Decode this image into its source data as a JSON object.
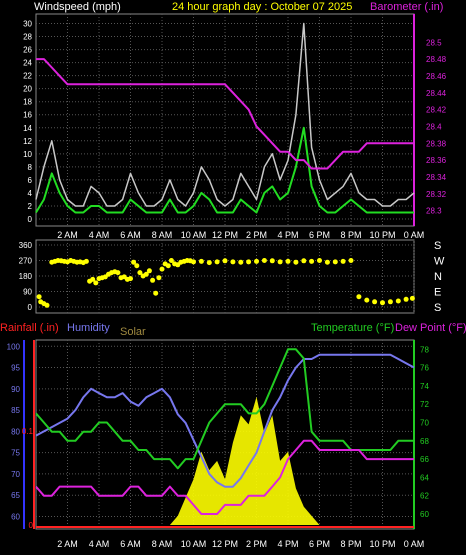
{
  "header": {
    "windspeed_label": "Windspeed (mph)",
    "title": "24 hour graph day : October 07 2025",
    "barometer_label": "Barometer (.in)"
  },
  "legend2": {
    "rainfall_label": "Rainfall (.in)",
    "humidity_label": "Humidity",
    "solar_label": "Solar",
    "temperature_label": "Temperature (°F)",
    "dewpoint_label": "Dew Point (°F)"
  },
  "time_ticks": [
    "2 AM",
    "4 AM",
    "6 AM",
    "8 AM",
    "10 AM",
    "12 PM",
    "2 PM",
    "4 PM",
    "6 PM",
    "8 PM",
    "10 PM",
    "0 AM"
  ],
  "colors": {
    "wind_gust": "#c8c8c8",
    "wind_avg": "#22dd22",
    "barometer": "#dd22dd",
    "direction": "#ffff00",
    "humidity": "#7777ee",
    "temperature": "#22cc22",
    "dewpoint": "#dd22dd",
    "solar": "#ffff00",
    "rainfall_axis": "#ff2222",
    "grid": "#555555"
  },
  "chart_data": [
    {
      "type": "line",
      "name": "wind-barometer",
      "x_hours": [
        0,
        0.5,
        1,
        1.5,
        2,
        2.5,
        3,
        3.5,
        4,
        4.5,
        5,
        5.5,
        6,
        6.5,
        7,
        7.5,
        8,
        8.5,
        9,
        9.5,
        10,
        10.5,
        11,
        11.5,
        12,
        12.5,
        13,
        13.5,
        14,
        14.5,
        15,
        15.5,
        16,
        16.5,
        17,
        17.5,
        18,
        18.5,
        19,
        19.5,
        20,
        20.5,
        21,
        21.5,
        22,
        22.5,
        23,
        23.5,
        24
      ],
      "series": [
        {
          "values": [
            3,
            8,
            12,
            6,
            3,
            2,
            2,
            5,
            4,
            2,
            2,
            3,
            7,
            4,
            2,
            2,
            3,
            6,
            3,
            2,
            4,
            8,
            6,
            3,
            2,
            3,
            7,
            5,
            3,
            8,
            10,
            6,
            9,
            16,
            30,
            11,
            6,
            3,
            4,
            5,
            7,
            4,
            3,
            3,
            2,
            2,
            3,
            3,
            4
          ]
        },
        {
          "values": [
            1,
            3,
            7,
            4,
            2,
            1,
            1,
            2,
            2,
            1,
            1,
            1,
            3,
            2,
            1,
            1,
            1,
            3,
            1,
            1,
            2,
            4,
            3,
            1,
            1,
            1,
            3,
            2,
            1,
            4,
            5,
            3,
            4,
            8,
            14,
            5,
            2,
            1,
            1,
            2,
            3,
            2,
            1,
            1,
            1,
            1,
            1,
            1,
            1
          ]
        },
        {
          "values": [
            28.48,
            28.48,
            28.47,
            28.46,
            28.45,
            28.45,
            28.45,
            28.45,
            28.45,
            28.45,
            28.45,
            28.45,
            28.45,
            28.45,
            28.45,
            28.45,
            28.45,
            28.45,
            28.45,
            28.45,
            28.45,
            28.45,
            28.45,
            28.45,
            28.45,
            28.44,
            28.43,
            28.42,
            28.4,
            28.39,
            28.38,
            28.37,
            28.37,
            28.36,
            28.36,
            28.35,
            28.35,
            28.35,
            28.36,
            28.37,
            28.37,
            28.37,
            28.38,
            28.38,
            28.38,
            28.38,
            28.38,
            28.38,
            28.38
          ]
        }
      ],
      "ylim_left": [
        0,
        31
      ],
      "ylim_right": [
        28.29,
        28.53
      ],
      "yticks_left": [
        "0",
        "2",
        "4",
        "6",
        "8",
        "10",
        "12",
        "14",
        "16",
        "18",
        "20",
        "22",
        "24",
        "26",
        "28",
        "30"
      ],
      "yticks_right": [
        "28.3",
        "28.32",
        "28.34",
        "28.36",
        "28.38",
        "28.4",
        "28.42",
        "28.44",
        "28.46",
        "28.48",
        "28.5"
      ]
    },
    {
      "type": "scatter",
      "name": "wind-direction",
      "ylim": [
        0,
        360
      ],
      "yticks_left": [
        "0",
        "90",
        "180",
        "270",
        "360"
      ],
      "yticks_right": [
        "S",
        "E",
        "N",
        "W",
        "S"
      ],
      "points_hours": [
        0.2,
        0.3,
        0.5,
        0.7,
        1,
        1.2,
        1.4,
        1.6,
        1.8,
        2,
        2.2,
        2.4,
        2.6,
        2.8,
        3,
        3.2,
        3.4,
        3.6,
        3.8,
        4,
        4.2,
        4.4,
        4.6,
        4.8,
        5,
        5.2,
        5.4,
        5.6,
        5.8,
        6,
        6.2,
        6.4,
        6.6,
        6.8,
        7,
        7.2,
        7.4,
        7.6,
        7.8,
        8,
        8.2,
        8.4,
        8.6,
        8.8,
        9,
        9.2,
        9.4,
        9.6,
        9.8,
        10,
        10.5,
        11,
        11.5,
        12,
        12.5,
        13,
        13.5,
        14,
        14.5,
        15,
        15.5,
        16,
        16.5,
        17,
        17.5,
        18,
        18.5,
        19,
        19.5,
        20,
        20.5,
        21,
        21.5,
        22,
        22.5,
        23,
        23.5,
        23.9
      ],
      "points_deg": [
        60,
        30,
        20,
        10,
        260,
        265,
        270,
        268,
        265,
        262,
        270,
        265,
        260,
        262,
        258,
        265,
        150,
        160,
        140,
        165,
        170,
        175,
        190,
        200,
        205,
        200,
        170,
        175,
        160,
        165,
        260,
        240,
        200,
        180,
        190,
        210,
        155,
        80,
        170,
        220,
        250,
        240,
        270,
        250,
        245,
        260,
        265,
        270,
        268,
        262,
        265,
        258,
        262,
        268,
        262,
        260,
        262,
        265,
        270,
        268,
        262,
        265,
        260,
        268,
        265,
        270,
        260,
        262,
        265,
        270,
        60,
        40,
        30,
        25,
        30,
        35,
        45,
        50
      ]
    },
    {
      "type": "line",
      "name": "humidity-temp",
      "x_hours": [
        0,
        0.5,
        1,
        1.5,
        2,
        2.5,
        3,
        3.5,
        4,
        4.5,
        5,
        5.5,
        6,
        6.5,
        7,
        7.5,
        8,
        8.5,
        9,
        9.5,
        10,
        10.5,
        11,
        11.5,
        12,
        12.5,
        13,
        13.5,
        14,
        14.5,
        15,
        15.5,
        16,
        16.5,
        17,
        17.5,
        18,
        18.5,
        19,
        19.5,
        20,
        20.5,
        21,
        21.5,
        22,
        22.5,
        23,
        23.5,
        24
      ],
      "series": [
        {
          "values": [
            79,
            80,
            81,
            82,
            83,
            85,
            88,
            90,
            89,
            88,
            88,
            89,
            87,
            86,
            88,
            89,
            90,
            88,
            84,
            82,
            78,
            74,
            70,
            68,
            67,
            67,
            69,
            72,
            75,
            80,
            85,
            88,
            92,
            95,
            97,
            97,
            98,
            98,
            98,
            98,
            98,
            98,
            98,
            98,
            98,
            98,
            97,
            96,
            95
          ]
        },
        {
          "values": [
            71,
            70,
            69,
            69,
            68,
            68,
            69,
            69,
            70,
            70,
            69,
            68,
            68,
            67,
            67,
            66,
            66,
            66,
            65,
            66,
            66,
            68,
            70,
            71,
            72,
            72,
            72,
            71,
            71,
            72,
            74,
            76,
            78,
            78,
            77,
            69,
            68,
            68,
            68,
            68,
            67,
            67,
            67,
            67,
            67,
            67,
            68,
            68,
            68
          ]
        },
        {
          "values": [
            63,
            62,
            62,
            63,
            63,
            63,
            63,
            63,
            62,
            62,
            62,
            62,
            63,
            63,
            62,
            62,
            62,
            63,
            62,
            62,
            61,
            60,
            60,
            60,
            61,
            61,
            61,
            62,
            62,
            62,
            63,
            64,
            66,
            67,
            68,
            68,
            67,
            67,
            67,
            67,
            67,
            67,
            66,
            66,
            66,
            66,
            66,
            66,
            66
          ]
        },
        {
          "values": [
            0,
            0,
            0,
            0,
            0,
            0,
            0,
            0,
            0,
            0,
            0,
            0,
            0,
            0,
            0,
            0,
            0,
            0,
            5,
            15,
            25,
            40,
            30,
            35,
            25,
            45,
            60,
            55,
            70,
            50,
            60,
            35,
            40,
            20,
            10,
            5,
            0,
            0,
            0,
            0,
            0,
            0,
            0,
            0,
            0,
            0,
            0,
            0,
            0
          ]
        }
      ],
      "ylim_left": [
        58,
        101
      ],
      "ylim_right": [
        58.8,
        78.8
      ],
      "yticks_left": [
        "60",
        "65",
        "70",
        "75",
        "80",
        "85",
        "90",
        "95",
        "100"
      ],
      "yticks_right": [
        "60",
        "62",
        "64",
        "66",
        "68",
        "70",
        "72",
        "74",
        "76",
        "78"
      ],
      "rainfall_ticks": [
        "0",
        "0.1"
      ]
    }
  ]
}
